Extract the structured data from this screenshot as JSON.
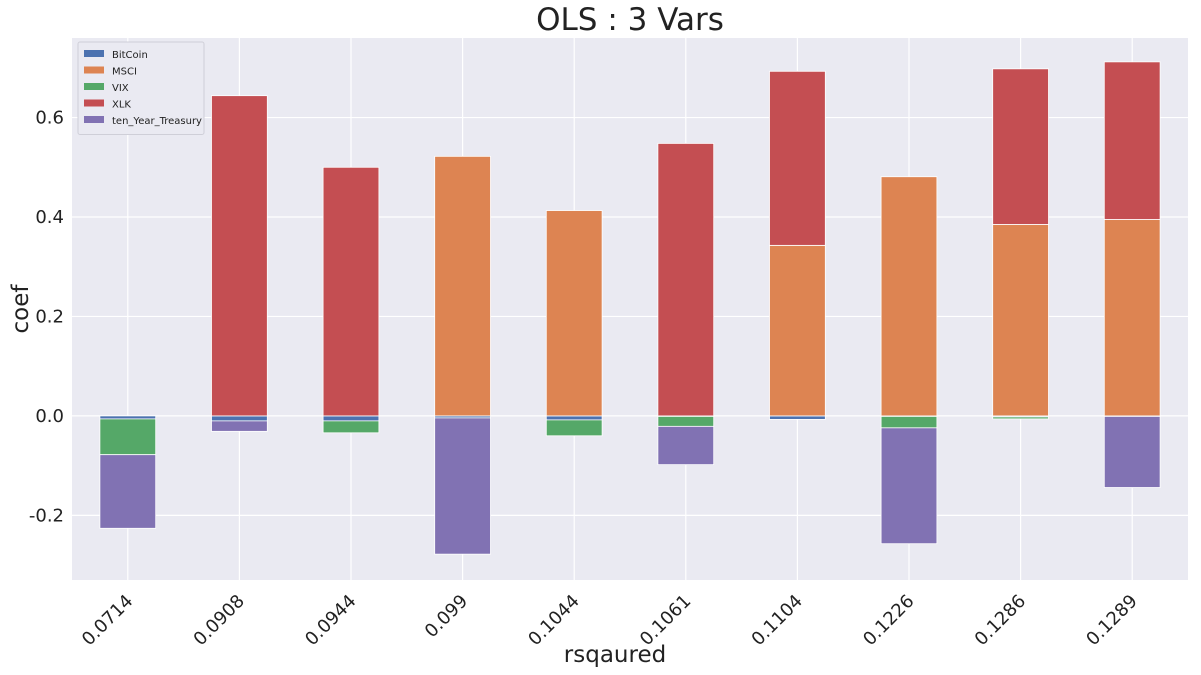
{
  "chart_data": {
    "type": "bar",
    "stacked": true,
    "title": "OLS : 3 Vars",
    "xlabel": "rsqaured",
    "ylabel": "coef",
    "categories": [
      "0.0714",
      "0.0908",
      "0.0944",
      "0.099",
      "0.1044",
      "0.1061",
      "0.1104",
      "0.1226",
      "0.1286",
      "0.1289"
    ],
    "ylim": [
      -0.33,
      0.76
    ],
    "yticks": [
      -0.2,
      0.0,
      0.2,
      0.4,
      0.6
    ],
    "ytick_labels": [
      "-0.2",
      "0.0",
      "0.2",
      "0.4",
      "0.6"
    ],
    "grid": true,
    "legend_position": "top-left",
    "background": "#EAEAF2",
    "series": [
      {
        "name": "BitCoin",
        "color": "#4C72B0",
        "values": [
          -0.006,
          -0.01,
          -0.01,
          -0.004,
          -0.008,
          -0.001,
          -0.007,
          -0.001,
          -0.002,
          -0.001
        ]
      },
      {
        "name": "MSCI",
        "color": "#DD8452",
        "values": [
          0,
          0,
          0,
          0.522,
          0.413,
          0,
          0.343,
          0.481,
          0.385,
          0.395
        ]
      },
      {
        "name": "VIX",
        "color": "#55A868",
        "values": [
          -0.072,
          0,
          -0.024,
          0,
          -0.032,
          -0.02,
          0,
          -0.023,
          -0.004,
          0
        ]
      },
      {
        "name": "XLK",
        "color": "#C44E52",
        "values": [
          0,
          0.644,
          0.5,
          0,
          0,
          0.548,
          0.35,
          0,
          0.313,
          0.317
        ]
      },
      {
        "name": "ten_Year_Treasury",
        "color": "#8172B3",
        "values": [
          -0.148,
          -0.021,
          0,
          -0.274,
          0,
          -0.077,
          0,
          -0.233,
          0,
          -0.143
        ]
      }
    ]
  }
}
